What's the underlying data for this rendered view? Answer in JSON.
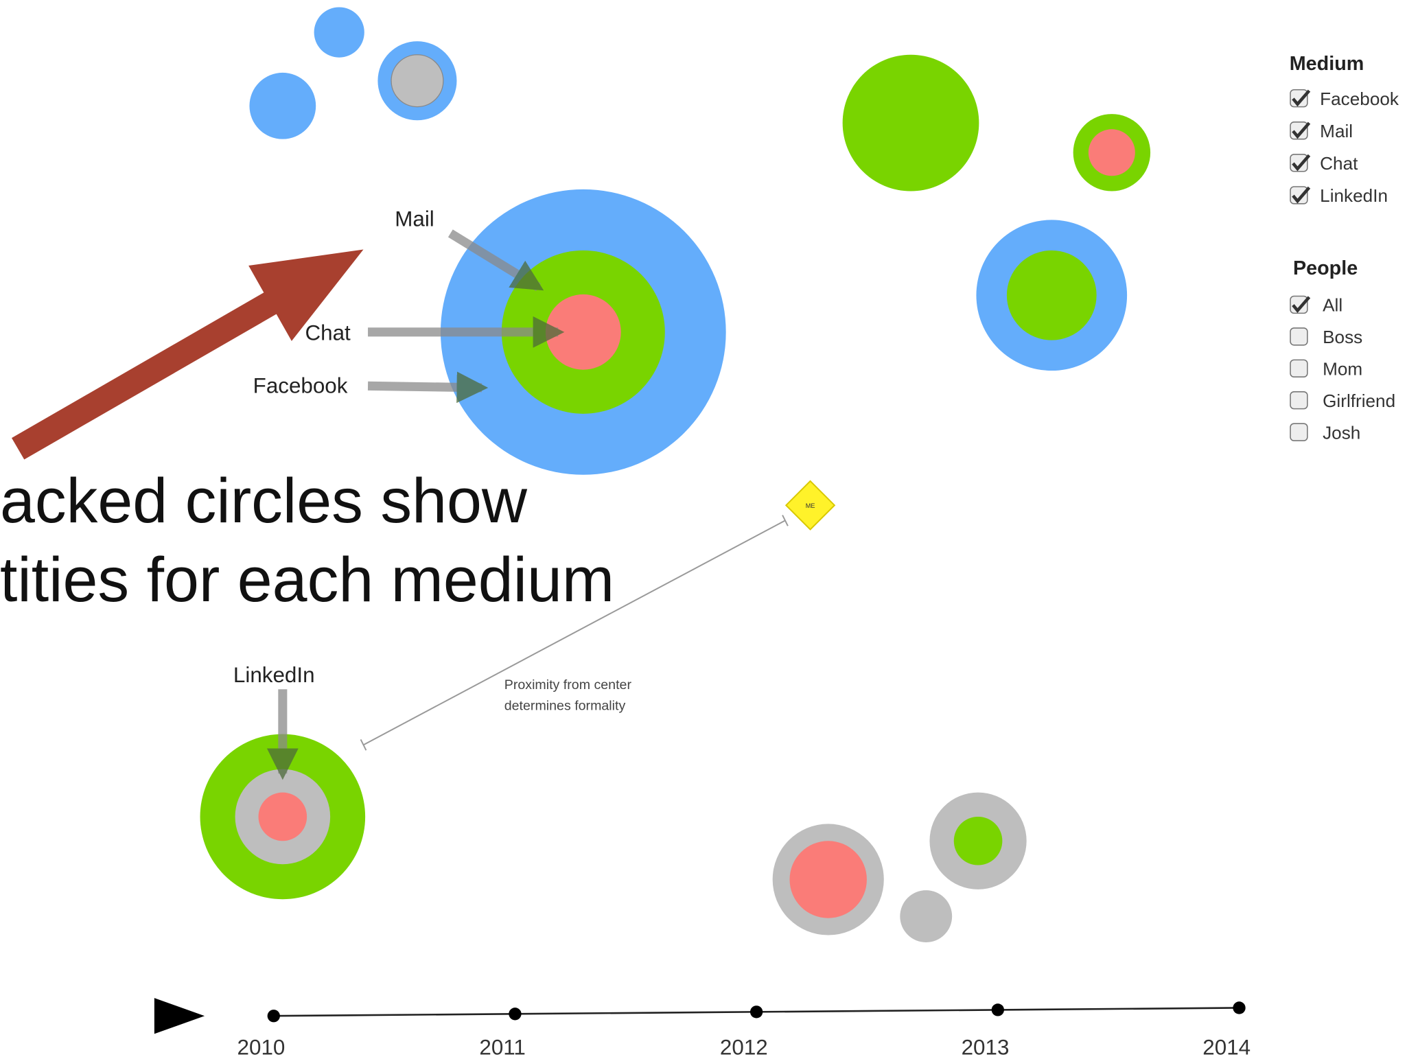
{
  "annotations": {
    "mail": "Mail",
    "chat": "Chat",
    "facebook": "Facebook",
    "linkedin": "LinkedIn",
    "proximity": [
      "Proximity from center",
      "determines formality"
    ],
    "me": "ME"
  },
  "caption": [
    "acked circles show",
    "tities for each medium"
  ],
  "legend": {
    "medium": {
      "title": "Medium",
      "items": [
        {
          "label": "Facebook",
          "checked": true
        },
        {
          "label": "Mail",
          "checked": true
        },
        {
          "label": "Chat",
          "checked": true
        },
        {
          "label": "LinkedIn",
          "checked": true
        }
      ]
    },
    "people": {
      "title": "People",
      "items": [
        {
          "label": "All",
          "checked": true
        },
        {
          "label": "Boss",
          "checked": false
        },
        {
          "label": "Mom",
          "checked": false
        },
        {
          "label": "Girlfriend",
          "checked": false
        },
        {
          "label": "Josh",
          "checked": false
        }
      ]
    }
  },
  "timeline": {
    "years": [
      "2010",
      "2011",
      "2012",
      "2013",
      "2014"
    ]
  }
}
